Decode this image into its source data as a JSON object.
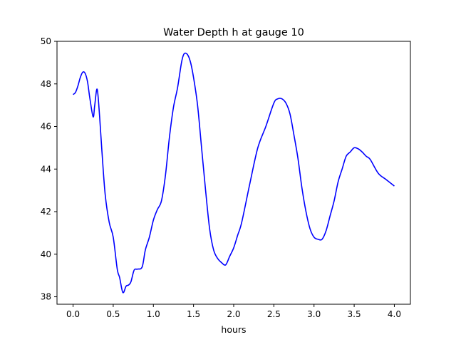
{
  "chart_data": {
    "type": "line",
    "title": "Water Depth h at gauge 10",
    "xlabel": "hours",
    "ylabel": "",
    "xlim": [
      -0.2,
      4.2
    ],
    "ylim": [
      37.65,
      50
    ],
    "xticks": [
      0.0,
      0.5,
      1.0,
      1.5,
      2.0,
      2.5,
      3.0,
      3.5,
      4.0
    ],
    "xtick_labels": [
      "0.0",
      "0.5",
      "1.0",
      "1.5",
      "2.0",
      "2.5",
      "3.0",
      "3.5",
      "4.0"
    ],
    "yticks": [
      38,
      40,
      42,
      44,
      46,
      48,
      50
    ],
    "ytick_labels": [
      "38",
      "40",
      "42",
      "44",
      "46",
      "48",
      "50"
    ],
    "grid": false,
    "series": [
      {
        "color": "#0000ff",
        "x": [
          0.0,
          0.03,
          0.06,
          0.09,
          0.12,
          0.15,
          0.18,
          0.21,
          0.25,
          0.27,
          0.3,
          0.33,
          0.36,
          0.4,
          0.45,
          0.5,
          0.55,
          0.58,
          0.62,
          0.66,
          0.69,
          0.72,
          0.76,
          0.8,
          0.86,
          0.9,
          0.95,
          1.0,
          1.05,
          1.1,
          1.15,
          1.2,
          1.25,
          1.3,
          1.35,
          1.38,
          1.42,
          1.46,
          1.5,
          1.55,
          1.6,
          1.65,
          1.7,
          1.75,
          1.8,
          1.85,
          1.9,
          1.95,
          2.0,
          2.05,
          2.1,
          2.2,
          2.3,
          2.4,
          2.5,
          2.55,
          2.6,
          2.65,
          2.7,
          2.75,
          2.8,
          2.85,
          2.9,
          2.95,
          3.0,
          3.05,
          3.1,
          3.15,
          3.2,
          3.25,
          3.3,
          3.35,
          3.4,
          3.45,
          3.5,
          3.55,
          3.6,
          3.65,
          3.7,
          3.8,
          3.9,
          4.0
        ],
        "y": [
          47.5,
          47.6,
          47.9,
          48.3,
          48.55,
          48.5,
          48.1,
          47.3,
          46.45,
          47.0,
          47.75,
          46.5,
          44.8,
          42.8,
          41.5,
          40.8,
          39.3,
          38.9,
          38.2,
          38.5,
          38.55,
          38.7,
          39.25,
          39.3,
          39.4,
          40.2,
          40.8,
          41.6,
          42.1,
          42.5,
          43.7,
          45.5,
          46.9,
          47.8,
          49.0,
          49.4,
          49.4,
          49.05,
          48.3,
          47.0,
          45.0,
          43.0,
          41.2,
          40.2,
          39.8,
          39.6,
          39.5,
          39.9,
          40.3,
          40.9,
          41.5,
          43.3,
          45.0,
          46.0,
          47.1,
          47.3,
          47.3,
          47.1,
          46.6,
          45.6,
          44.5,
          43.1,
          42.0,
          41.2,
          40.8,
          40.7,
          40.7,
          41.1,
          41.8,
          42.5,
          43.4,
          44.0,
          44.6,
          44.8,
          45.0,
          44.95,
          44.8,
          44.6,
          44.45,
          43.8,
          43.5,
          43.2
        ]
      }
    ]
  }
}
